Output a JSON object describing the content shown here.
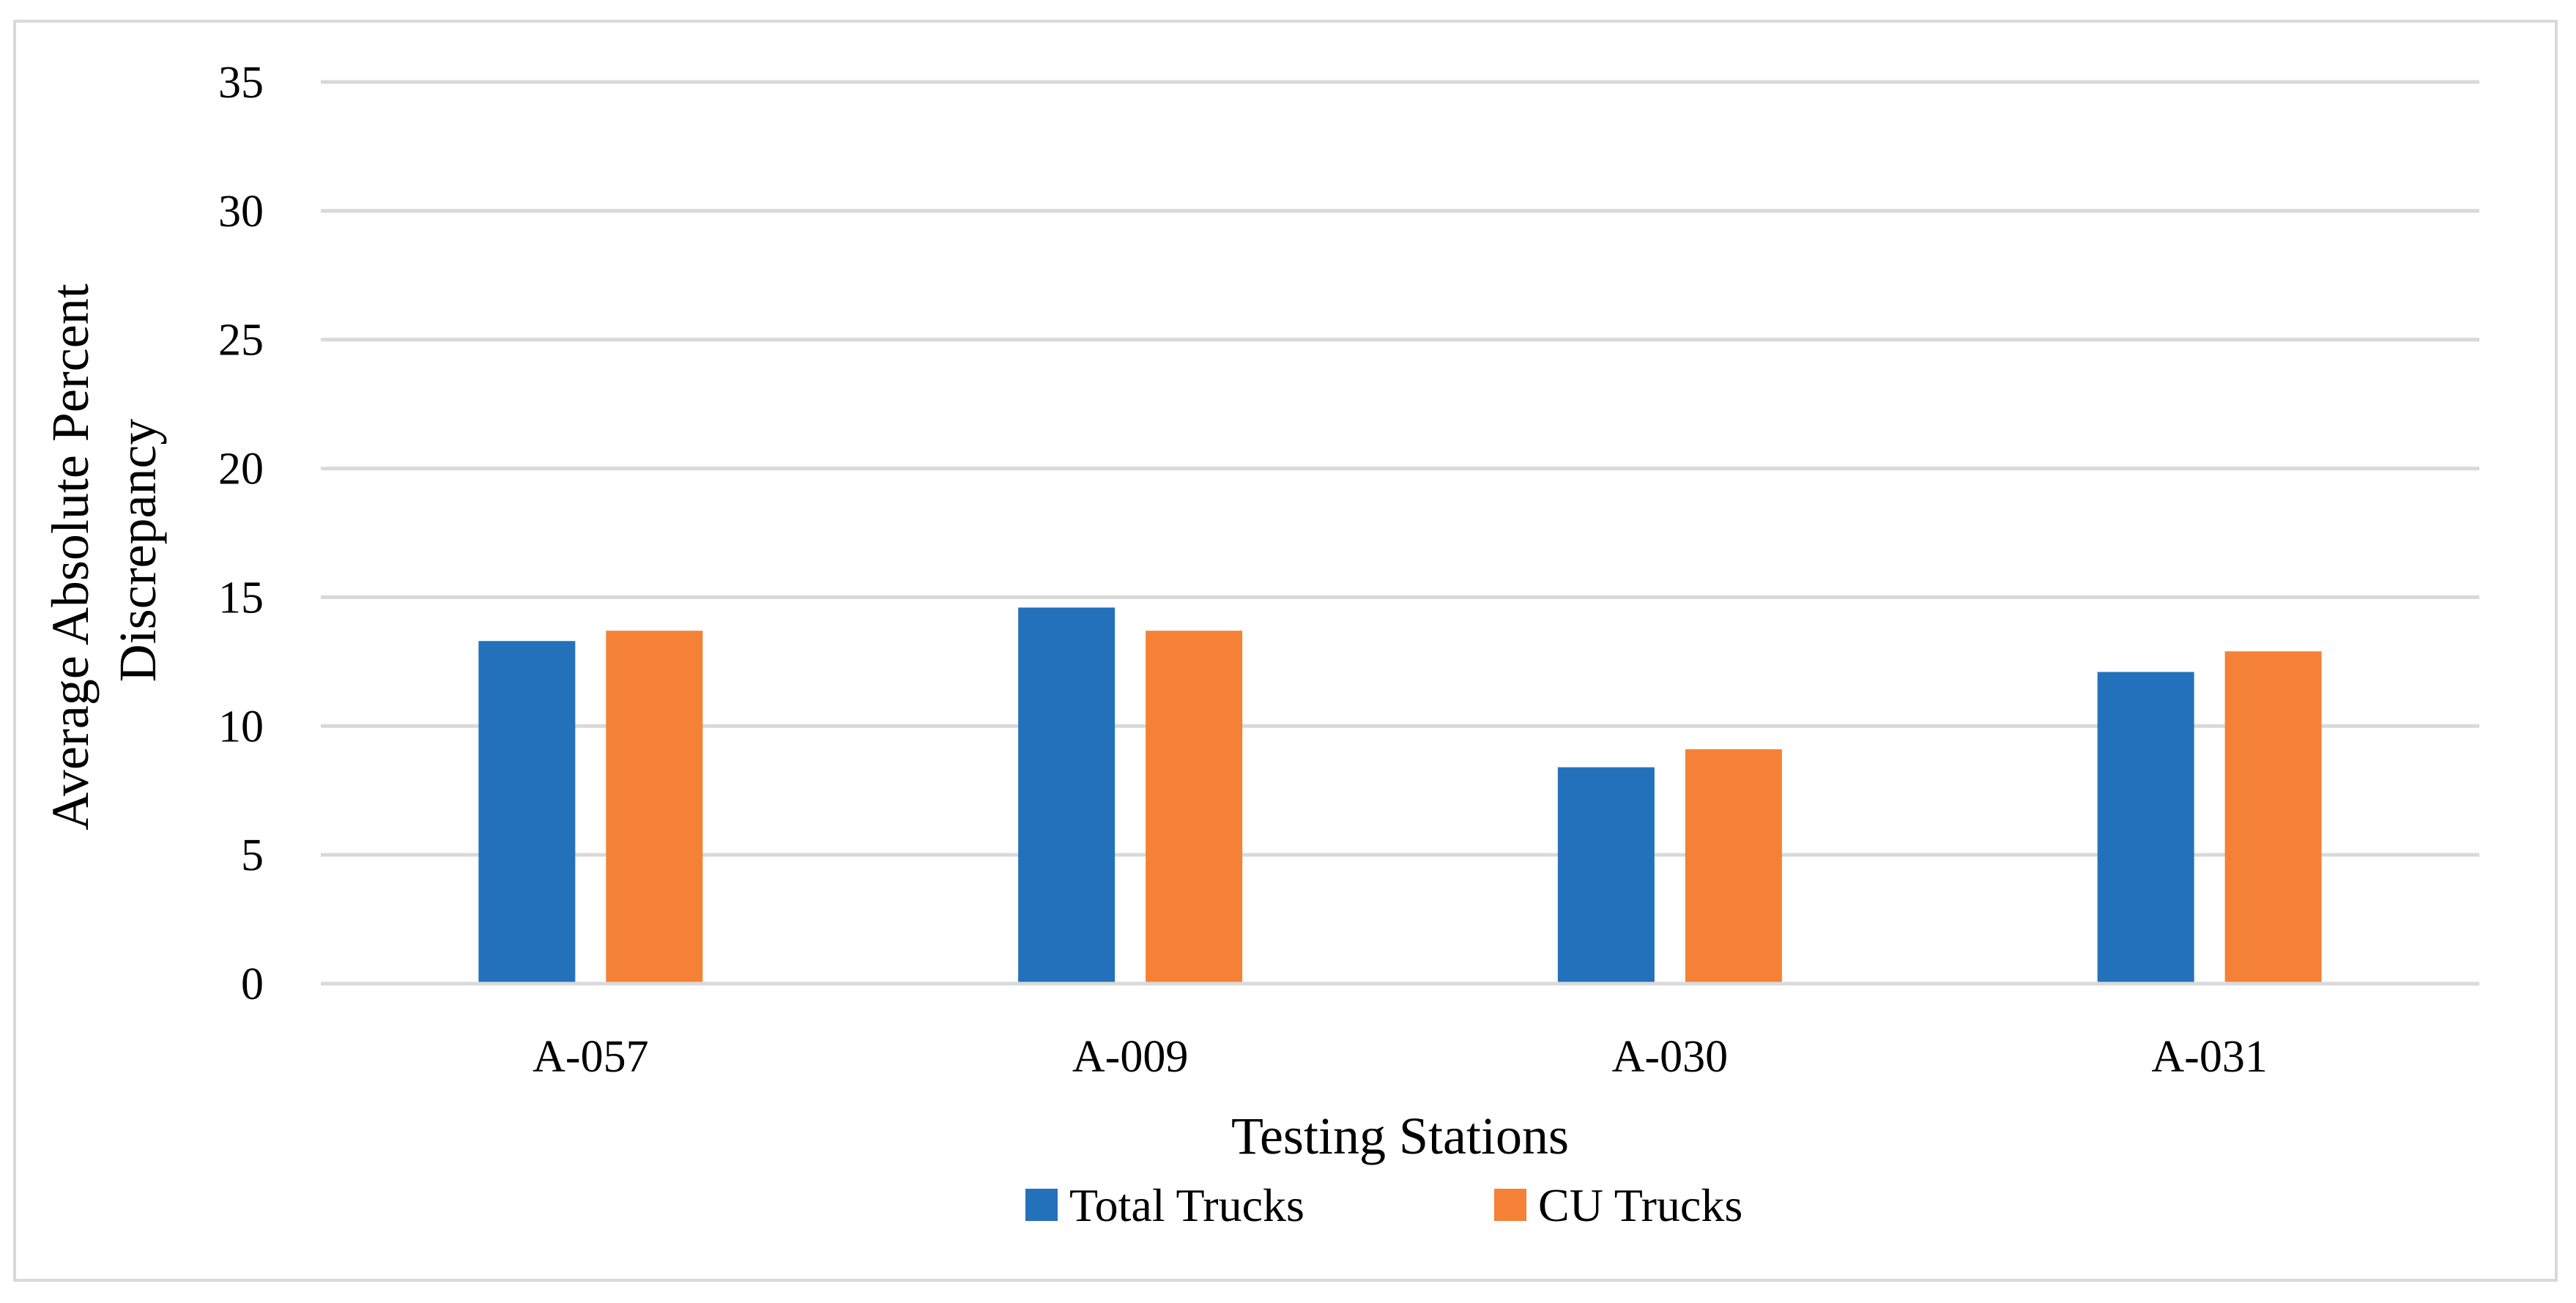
{
  "chart_data": {
    "type": "bar",
    "title": "",
    "xlabel": "Testing Stations",
    "ylabel_lines": [
      "Average Absolute Percent",
      "Discrepancy"
    ],
    "ylim": [
      0,
      35
    ],
    "yticks": [
      0,
      5,
      10,
      15,
      20,
      25,
      30,
      35
    ],
    "grid": true,
    "legend_position": "bottom",
    "categories": [
      "A-057",
      "A-009",
      "A-030",
      "A-031"
    ],
    "series": [
      {
        "name": "Total Trucks",
        "color": "#2471bb",
        "values": [
          13.3,
          14.6,
          8.4,
          12.1
        ]
      },
      {
        "name": "CU Trucks",
        "color": "#f48136",
        "values": [
          13.7,
          13.7,
          9.1,
          12.9
        ]
      }
    ],
    "colors": {
      "grid": "#d9d9d9",
      "axis": "#d9d9d9",
      "frame": "#d9d9d9"
    }
  }
}
